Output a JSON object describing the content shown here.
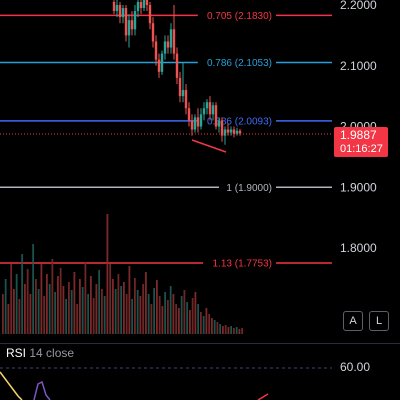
{
  "price_axis": [
    "2.2000",
    "2.1000",
    "2.0000",
    "1.9000",
    "1.8000"
  ],
  "fib_levels": [
    {
      "label": "0.705 (2.1830)",
      "price": 2.183,
      "color": "#f23645"
    },
    {
      "label": "0.786 (2.1053)",
      "price": 2.1053,
      "color": "#26a0da"
    },
    {
      "label": "0.886 (2.0093)",
      "price": 2.0093,
      "color": "#3d6cf5"
    },
    {
      "label": "1 (1.9000)",
      "price": 1.9,
      "color": "#b2b5be"
    },
    {
      "label": "1.13 (1.7753)",
      "price": 1.7753,
      "color": "#f23645"
    }
  ],
  "current_price": {
    "price": "1.9887",
    "countdown": "01:16:27",
    "color": "#f23645"
  },
  "buttons": {
    "auto": "A",
    "log": "L"
  },
  "rsi": {
    "name": "RSI",
    "params": "14 close",
    "axis_value": "60.00"
  },
  "colors": {
    "up": "#26a69a",
    "down": "#ef5350"
  }
}
